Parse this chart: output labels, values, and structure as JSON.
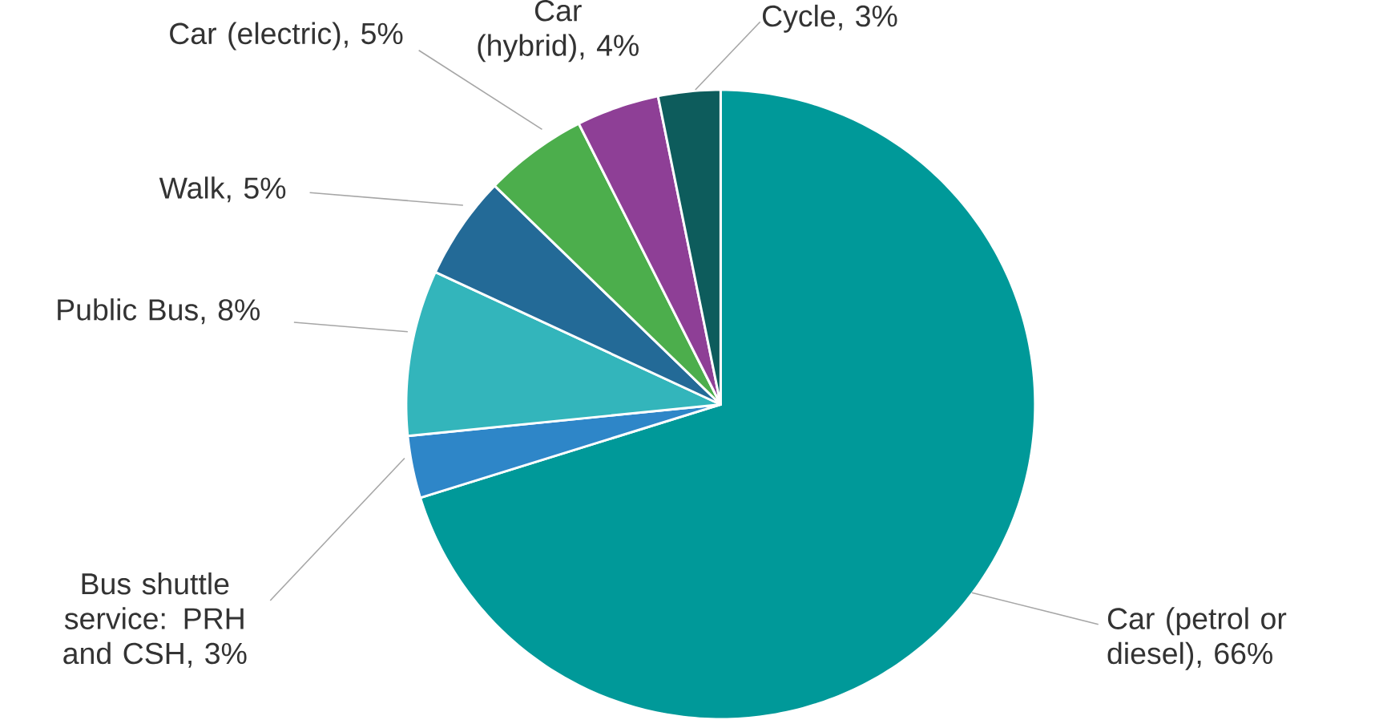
{
  "chart_data": {
    "type": "pie",
    "categories": [
      "Car (petrol or diesel)",
      "Bus shuttle service: PRH and CSH",
      "Public Bus",
      "Walk",
      "Car (electric)",
      "Car (hybrid)",
      "Cycle"
    ],
    "values": [
      66,
      3,
      8,
      5,
      5,
      4,
      3
    ],
    "value_labels": [
      ", 66%",
      ", 3%",
      ", 8%",
      ", 5%",
      ", 5%",
      ", 4%",
      ", 3%"
    ],
    "colors": [
      "#009999",
      "#2e86c8",
      "#33b5bb",
      "#236a97",
      "#4cae4c",
      "#8e3f96",
      "#0d5c5c"
    ]
  }
}
